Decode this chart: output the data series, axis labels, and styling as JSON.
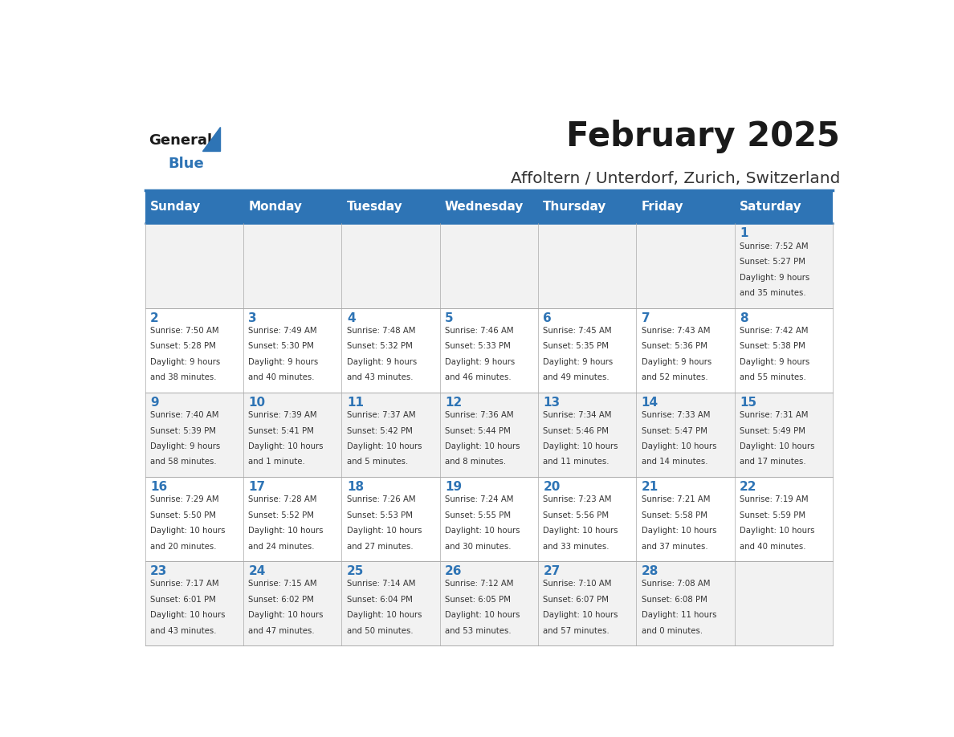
{
  "title": "February 2025",
  "subtitle": "Affoltern / Unterdorf, Zurich, Switzerland",
  "header_bg": "#2E74B5",
  "header_text_color": "#FFFFFF",
  "weekdays": [
    "Sunday",
    "Monday",
    "Tuesday",
    "Wednesday",
    "Thursday",
    "Friday",
    "Saturday"
  ],
  "row_bg_odd": "#F2F2F2",
  "row_bg_even": "#FFFFFF",
  "cell_border_color": "#2E74B5",
  "title_color": "#1A1A1A",
  "subtitle_color": "#333333",
  "day_number_color": "#2E74B5",
  "info_color": "#333333",
  "logo_text_color": "#1A1A1A",
  "logo_blue_color": "#2E74B5",
  "calendar_data": [
    {
      "day": 1,
      "col": 6,
      "row": 0,
      "sunrise": "7:52 AM",
      "sunset": "5:27 PM",
      "daylight": "9 hours and 35 minutes."
    },
    {
      "day": 2,
      "col": 0,
      "row": 1,
      "sunrise": "7:50 AM",
      "sunset": "5:28 PM",
      "daylight": "9 hours and 38 minutes."
    },
    {
      "day": 3,
      "col": 1,
      "row": 1,
      "sunrise": "7:49 AM",
      "sunset": "5:30 PM",
      "daylight": "9 hours and 40 minutes."
    },
    {
      "day": 4,
      "col": 2,
      "row": 1,
      "sunrise": "7:48 AM",
      "sunset": "5:32 PM",
      "daylight": "9 hours and 43 minutes."
    },
    {
      "day": 5,
      "col": 3,
      "row": 1,
      "sunrise": "7:46 AM",
      "sunset": "5:33 PM",
      "daylight": "9 hours and 46 minutes."
    },
    {
      "day": 6,
      "col": 4,
      "row": 1,
      "sunrise": "7:45 AM",
      "sunset": "5:35 PM",
      "daylight": "9 hours and 49 minutes."
    },
    {
      "day": 7,
      "col": 5,
      "row": 1,
      "sunrise": "7:43 AM",
      "sunset": "5:36 PM",
      "daylight": "9 hours and 52 minutes."
    },
    {
      "day": 8,
      "col": 6,
      "row": 1,
      "sunrise": "7:42 AM",
      "sunset": "5:38 PM",
      "daylight": "9 hours and 55 minutes."
    },
    {
      "day": 9,
      "col": 0,
      "row": 2,
      "sunrise": "7:40 AM",
      "sunset": "5:39 PM",
      "daylight": "9 hours and 58 minutes."
    },
    {
      "day": 10,
      "col": 1,
      "row": 2,
      "sunrise": "7:39 AM",
      "sunset": "5:41 PM",
      "daylight": "10 hours and 1 minute."
    },
    {
      "day": 11,
      "col": 2,
      "row": 2,
      "sunrise": "7:37 AM",
      "sunset": "5:42 PM",
      "daylight": "10 hours and 5 minutes."
    },
    {
      "day": 12,
      "col": 3,
      "row": 2,
      "sunrise": "7:36 AM",
      "sunset": "5:44 PM",
      "daylight": "10 hours and 8 minutes."
    },
    {
      "day": 13,
      "col": 4,
      "row": 2,
      "sunrise": "7:34 AM",
      "sunset": "5:46 PM",
      "daylight": "10 hours and 11 minutes."
    },
    {
      "day": 14,
      "col": 5,
      "row": 2,
      "sunrise": "7:33 AM",
      "sunset": "5:47 PM",
      "daylight": "10 hours and 14 minutes."
    },
    {
      "day": 15,
      "col": 6,
      "row": 2,
      "sunrise": "7:31 AM",
      "sunset": "5:49 PM",
      "daylight": "10 hours and 17 minutes."
    },
    {
      "day": 16,
      "col": 0,
      "row": 3,
      "sunrise": "7:29 AM",
      "sunset": "5:50 PM",
      "daylight": "10 hours and 20 minutes."
    },
    {
      "day": 17,
      "col": 1,
      "row": 3,
      "sunrise": "7:28 AM",
      "sunset": "5:52 PM",
      "daylight": "10 hours and 24 minutes."
    },
    {
      "day": 18,
      "col": 2,
      "row": 3,
      "sunrise": "7:26 AM",
      "sunset": "5:53 PM",
      "daylight": "10 hours and 27 minutes."
    },
    {
      "day": 19,
      "col": 3,
      "row": 3,
      "sunrise": "7:24 AM",
      "sunset": "5:55 PM",
      "daylight": "10 hours and 30 minutes."
    },
    {
      "day": 20,
      "col": 4,
      "row": 3,
      "sunrise": "7:23 AM",
      "sunset": "5:56 PM",
      "daylight": "10 hours and 33 minutes."
    },
    {
      "day": 21,
      "col": 5,
      "row": 3,
      "sunrise": "7:21 AM",
      "sunset": "5:58 PM",
      "daylight": "10 hours and 37 minutes."
    },
    {
      "day": 22,
      "col": 6,
      "row": 3,
      "sunrise": "7:19 AM",
      "sunset": "5:59 PM",
      "daylight": "10 hours and 40 minutes."
    },
    {
      "day": 23,
      "col": 0,
      "row": 4,
      "sunrise": "7:17 AM",
      "sunset": "6:01 PM",
      "daylight": "10 hours and 43 minutes."
    },
    {
      "day": 24,
      "col": 1,
      "row": 4,
      "sunrise": "7:15 AM",
      "sunset": "6:02 PM",
      "daylight": "10 hours and 47 minutes."
    },
    {
      "day": 25,
      "col": 2,
      "row": 4,
      "sunrise": "7:14 AM",
      "sunset": "6:04 PM",
      "daylight": "10 hours and 50 minutes."
    },
    {
      "day": 26,
      "col": 3,
      "row": 4,
      "sunrise": "7:12 AM",
      "sunset": "6:05 PM",
      "daylight": "10 hours and 53 minutes."
    },
    {
      "day": 27,
      "col": 4,
      "row": 4,
      "sunrise": "7:10 AM",
      "sunset": "6:07 PM",
      "daylight": "10 hours and 57 minutes."
    },
    {
      "day": 28,
      "col": 5,
      "row": 4,
      "sunrise": "7:08 AM",
      "sunset": "6:08 PM",
      "daylight": "11 hours and 0 minutes."
    }
  ]
}
